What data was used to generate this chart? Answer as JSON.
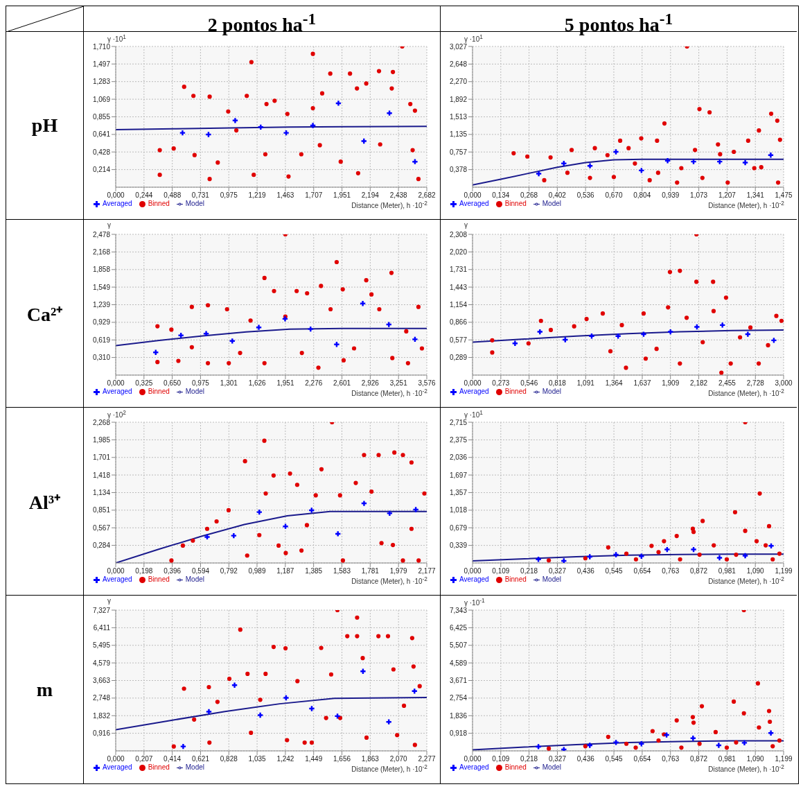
{
  "chart_data": [
    {
      "type": "scatter",
      "title": "2 pontos ha$^{-1}$",
      "annotations": [
        "pH"
      ],
      "ylabel": "γ ·10$^{1}$",
      "xlabel": "Distance (Meter), h ·10$^{-2}$",
      "grid": true,
      "legend": "bottom",
      "xlim": [
        0,
        2.682
      ],
      "xticks": [
        {
          "value": 0,
          "label": "0,000"
        },
        {
          "value": 0.244,
          "label": "0,244"
        },
        {
          "value": 0.488,
          "label": "0,488"
        },
        {
          "value": 0.731,
          "label": "0,731"
        },
        {
          "value": 0.975,
          "label": "0,975"
        },
        {
          "value": 1.219,
          "label": "1,219"
        },
        {
          "value": 1.463,
          "label": "1,463"
        },
        {
          "value": 1.707,
          "label": "1,707"
        },
        {
          "value": 1.951,
          "label": "1,951"
        },
        {
          "value": 2.194,
          "label": "2,194"
        },
        {
          "value": 2.438,
          "label": "2,438"
        },
        {
          "value": 2.682,
          "label": "2,682"
        }
      ],
      "ylim": [
        0,
        1.71
      ],
      "yticks": [
        {
          "value": 0.214,
          "label": "0,214"
        },
        {
          "value": 0.428,
          "label": "0,428"
        },
        {
          "value": 0.641,
          "label": "0,641"
        },
        {
          "value": 0.855,
          "label": "0,855"
        },
        {
          "value": 1.069,
          "label": "1,069"
        },
        {
          "value": 1.283,
          "label": "1,283"
        },
        {
          "value": 1.497,
          "label": "1,497"
        },
        {
          "value": 1.71,
          "label": "1,710"
        }
      ],
      "series": [
        {
          "name": "Model",
          "type": "line",
          "color": "#1a1a8c",
          "marker": "none",
          "x": [
            0,
            0.5,
            1,
            1.5,
            2,
            2.682
          ],
          "values": [
            0.7,
            0.71,
            0.72,
            0.73,
            0.735,
            0.74
          ]
        },
        {
          "name": "Binned",
          "color": "#e00000",
          "marker": "circle",
          "x": [
            0.38,
            0.38,
            0.5,
            0.59,
            0.67,
            0.68,
            0.81,
            0.81,
            0.88,
            0.97,
            1.04,
            1.13,
            1.17,
            1.19,
            1.3,
            1.29,
            1.37,
            1.48,
            1.49,
            1.6,
            1.7,
            1.7,
            1.76,
            1.78,
            1.85,
            1.94,
            2.02,
            2.08,
            2.09,
            2.16,
            2.27,
            2.28,
            2.38,
            2.39,
            2.47,
            2.54,
            2.56,
            2.61,
            2.58
          ],
          "values": [
            0.15,
            0.45,
            0.47,
            1.22,
            1.11,
            0.39,
            1.1,
            0.1,
            0.3,
            0.92,
            0.69,
            1.11,
            1.52,
            0.15,
            1.01,
            0.4,
            1.05,
            0.89,
            0.13,
            0.4,
            1.62,
            0.96,
            0.51,
            1.14,
            1.38,
            0.31,
            1.38,
            1.2,
            0.17,
            1.26,
            1.41,
            0.52,
            1.2,
            1.4,
            1.71,
            1.01,
            0.45,
            0.1,
            0.93
          ]
        },
        {
          "name": "Averaged",
          "color": "#0000ff",
          "marker": "cross",
          "x": [
            0.576,
            0.8,
            1.03,
            1.25,
            1.47,
            1.7,
            1.92,
            2.14,
            2.36,
            2.58
          ],
          "values": [
            0.66,
            0.64,
            0.81,
            0.73,
            0.66,
            0.75,
            1.02,
            0.56,
            0.9,
            0.31
          ]
        }
      ]
    },
    {
      "type": "scatter",
      "title": "5 pontos ha$^{-1}$",
      "ylabel": "γ ·10$^{1}$",
      "xlabel": "Distance (Meter), h ·10$^{-2}$",
      "grid": true,
      "legend": "bottom",
      "xlim": [
        0,
        1.475
      ],
      "xticks": [
        {
          "value": 0,
          "label": "0,000"
        },
        {
          "value": 0.134,
          "label": "0,134"
        },
        {
          "value": 0.268,
          "label": "0,268"
        },
        {
          "value": 0.402,
          "label": "0,402"
        },
        {
          "value": 0.536,
          "label": "0,536"
        },
        {
          "value": 0.67,
          "label": "0,670"
        },
        {
          "value": 0.804,
          "label": "0,804"
        },
        {
          "value": 0.939,
          "label": "0,939"
        },
        {
          "value": 1.073,
          "label": "1,073"
        },
        {
          "value": 1.207,
          "label": "1,207"
        },
        {
          "value": 1.341,
          "label": "1,341"
        },
        {
          "value": 1.475,
          "label": "1,475"
        }
      ],
      "ylim": [
        0,
        3.027
      ],
      "yticks": [
        {
          "value": 0.378,
          "label": "0,378"
        },
        {
          "value": 0.757,
          "label": "0,757"
        },
        {
          "value": 1.135,
          "label": "1,135"
        },
        {
          "value": 1.513,
          "label": "1,513"
        },
        {
          "value": 1.892,
          "label": "1,892"
        },
        {
          "value": 2.27,
          "label": "2,270"
        },
        {
          "value": 2.648,
          "label": "2,648"
        },
        {
          "value": 3.027,
          "label": "3,027"
        }
      ],
      "series": [
        {
          "name": "Model",
          "type": "line",
          "color": "#1a1a8c",
          "marker": "none",
          "x": [
            0,
            0.134,
            0.268,
            0.402,
            0.536,
            0.67,
            0.804,
            1.0,
            1.475
          ],
          "values": [
            0.05,
            0.17,
            0.3,
            0.43,
            0.53,
            0.59,
            0.6,
            0.6,
            0.6
          ]
        },
        {
          "name": "Binned",
          "color": "#e00000",
          "marker": "circle",
          "x": [
            0.195,
            0.26,
            0.37,
            0.47,
            0.58,
            0.64,
            0.7,
            0.74,
            0.8,
            0.875,
            0.91,
            1.017,
            1.076,
            1.124,
            0.67,
            0.84,
            0.97,
            1.09,
            1.21,
            1.307,
            1.358,
            1.416,
            1.445,
            1.458,
            1.449,
            1.336,
            1.239,
            1.174,
            1.055,
            0.99,
            0.88,
            0.77,
            0.557,
            0.45,
            0.34,
            1.164,
            1.369
          ],
          "values": [
            0.73,
            0.66,
            0.64,
            0.8,
            0.84,
            0.69,
            1.0,
            0.84,
            1.05,
            1.0,
            1.37,
            3.027,
            1.68,
            1.61,
            0.22,
            0.15,
            0.1,
            0.2,
            0.1,
            1.0,
            1.22,
            1.58,
            1.43,
            1.02,
            0.1,
            0.41,
            0.76,
            0.71,
            0.8,
            0.41,
            0.31,
            0.51,
            0.2,
            0.31,
            0.15,
            0.92,
            0.43
          ]
        },
        {
          "name": "Averaged",
          "color": "#0000ff",
          "marker": "cross",
          "x": [
            0.314,
            0.433,
            0.557,
            0.68,
            0.801,
            0.925,
            1.048,
            1.172,
            1.293,
            1.414
          ],
          "values": [
            0.29,
            0.51,
            0.46,
            0.76,
            0.36,
            0.57,
            0.55,
            0.55,
            0.53,
            0.69
          ]
        }
      ]
    },
    {
      "type": "scatter",
      "annotations": [
        "Ca²⁺"
      ],
      "ylabel": "γ",
      "xlabel": "Distance (Meter), h ·10$^{-2}$",
      "grid": true,
      "legend": "bottom",
      "xlim": [
        0,
        3.576
      ],
      "xticks": [
        {
          "value": 0,
          "label": "0,000"
        },
        {
          "value": 0.325,
          "label": "0,325"
        },
        {
          "value": 0.65,
          "label": "0,650"
        },
        {
          "value": 0.975,
          "label": "0,975"
        },
        {
          "value": 1.301,
          "label": "1,301"
        },
        {
          "value": 1.626,
          "label": "1,626"
        },
        {
          "value": 1.951,
          "label": "1,951"
        },
        {
          "value": 2.276,
          "label": "2,276"
        },
        {
          "value": 2.601,
          "label": "2,601"
        },
        {
          "value": 2.926,
          "label": "2,926"
        },
        {
          "value": 3.251,
          "label": "3,251"
        },
        {
          "value": 3.576,
          "label": "3,576"
        }
      ],
      "ylim": [
        0,
        2.478
      ],
      "yticks": [
        {
          "value": 0.31,
          "label": "0,310"
        },
        {
          "value": 0.619,
          "label": "0,619"
        },
        {
          "value": 0.929,
          "label": "0,929"
        },
        {
          "value": 1.239,
          "label": "1,239"
        },
        {
          "value": 1.549,
          "label": "1,549"
        },
        {
          "value": 1.858,
          "label": "1,858"
        },
        {
          "value": 2.168,
          "label": "2,168"
        },
        {
          "value": 2.478,
          "label": "2,478"
        }
      ],
      "series": [
        {
          "name": "Model",
          "type": "line",
          "color": "#1a1a8c",
          "marker": "none",
          "x": [
            0,
            0.5,
            1.0,
            1.5,
            2.0,
            2.6,
            3.576
          ],
          "values": [
            0.52,
            0.61,
            0.69,
            0.76,
            0.81,
            0.82,
            0.82
          ]
        },
        {
          "name": "Binned",
          "color": "#e00000",
          "marker": "circle",
          "x": [
            0.48,
            0.48,
            0.64,
            0.72,
            0.875,
            0.875,
            1.06,
            1.06,
            1.28,
            1.3,
            1.43,
            1.55,
            1.71,
            1.71,
            1.82,
            1.95,
            1.95,
            2.08,
            2.14,
            2.2,
            2.33,
            2.36,
            2.47,
            2.54,
            2.61,
            2.62,
            2.74,
            2.88,
            2.94,
            3.03,
            3.17,
            3.18,
            3.34,
            3.48,
            3.52,
            3.36
          ],
          "values": [
            0.86,
            0.23,
            0.8,
            0.25,
            1.2,
            0.49,
            1.23,
            0.21,
            1.16,
            0.21,
            0.39,
            0.96,
            1.71,
            0.21,
            1.48,
            2.478,
            1.03,
            1.48,
            0.39,
            1.44,
            0.13,
            1.57,
            1.16,
            1.99,
            1.51,
            0.26,
            0.47,
            1.67,
            1.42,
            1.16,
            1.8,
            0.3,
            0.77,
            1.2,
            0.47,
            0.21
          ]
        },
        {
          "name": "Averaged",
          "color": "#0000ff",
          "marker": "cross",
          "x": [
            0.46,
            0.75,
            1.04,
            1.34,
            1.645,
            1.947,
            2.24,
            2.54,
            2.84,
            3.14,
            3.44
          ],
          "values": [
            0.4,
            0.7,
            0.73,
            0.6,
            0.84,
            0.99,
            0.81,
            0.54,
            1.26,
            0.89,
            0.63
          ]
        }
      ]
    },
    {
      "type": "scatter",
      "ylabel": "γ",
      "xlabel": "Distance (Meter), h ·10$^{-2}$",
      "grid": true,
      "legend": "bottom",
      "xlim": [
        0,
        3.0
      ],
      "xticks": [
        {
          "value": 0,
          "label": "0,000"
        },
        {
          "value": 0.273,
          "label": "0,273"
        },
        {
          "value": 0.546,
          "label": "0,546"
        },
        {
          "value": 0.818,
          "label": "0,818"
        },
        {
          "value": 1.091,
          "label": "1,091"
        },
        {
          "value": 1.364,
          "label": "1,364"
        },
        {
          "value": 1.637,
          "label": "1,637"
        },
        {
          "value": 1.909,
          "label": "1,909"
        },
        {
          "value": 2.182,
          "label": "2,182"
        },
        {
          "value": 2.455,
          "label": "2,455"
        },
        {
          "value": 2.728,
          "label": "2,728"
        },
        {
          "value": 3.0,
          "label": "3,000"
        }
      ],
      "ylim": [
        0,
        2.308
      ],
      "yticks": [
        {
          "value": 0.289,
          "label": "0,289"
        },
        {
          "value": 0.577,
          "label": "0,577"
        },
        {
          "value": 0.866,
          "label": "0,866"
        },
        {
          "value": 1.154,
          "label": "1,154"
        },
        {
          "value": 1.443,
          "label": "1,443"
        },
        {
          "value": 1.731,
          "label": "1,731"
        },
        {
          "value": 2.02,
          "label": "2,020"
        },
        {
          "value": 2.308,
          "label": "2,308"
        }
      ],
      "series": [
        {
          "name": "Model",
          "type": "line",
          "color": "#1a1a8c",
          "marker": "none",
          "x": [
            0,
            0.5,
            1.0,
            1.5,
            2.0,
            2.5,
            3.0
          ],
          "values": [
            0.54,
            0.59,
            0.64,
            0.68,
            0.71,
            0.73,
            0.74
          ]
        },
        {
          "name": "Binned",
          "color": "#e00000",
          "marker": "circle",
          "x": [
            0.19,
            0.19,
            0.54,
            0.66,
            0.755,
            0.98,
            1.1,
            1.256,
            1.33,
            1.44,
            1.65,
            1.67,
            1.775,
            1.886,
            1.904,
            2.0,
            2.0,
            2.065,
            2.159,
            2.159,
            2.22,
            2.32,
            2.325,
            2.445,
            2.49,
            2.58,
            2.68,
            2.76,
            2.93,
            2.98,
            2.85,
            2.4,
            1.48
          ],
          "values": [
            0.37,
            0.57,
            0.52,
            0.89,
            0.74,
            0.8,
            0.92,
            1.01,
            0.39,
            0.82,
            1.01,
            0.27,
            0.43,
            1.11,
            1.69,
            1.71,
            0.19,
            0.94,
            2.308,
            1.53,
            0.54,
            1.53,
            1.05,
            1.27,
            0.19,
            0.62,
            0.78,
            0.19,
            0.97,
            0.89,
            0.49,
            0.04,
            0.12
          ]
        },
        {
          "name": "Averaged",
          "color": "#0000ff",
          "marker": "cross",
          "x": [
            0.41,
            0.65,
            0.894,
            1.149,
            1.404,
            1.65,
            1.909,
            2.164,
            2.41,
            2.655,
            2.906
          ],
          "values": [
            0.52,
            0.71,
            0.58,
            0.64,
            0.64,
            0.67,
            0.71,
            0.79,
            0.82,
            0.67,
            0.57
          ]
        }
      ]
    },
    {
      "type": "scatter",
      "annotations": [
        "Al³⁺"
      ],
      "ylabel": "γ ·10$^{2}$",
      "xlabel": "Distance (Meter), h ·10$^{-2}$",
      "grid": true,
      "legend": "bottom",
      "xlim": [
        0,
        2.177
      ],
      "xticks": [
        {
          "value": 0,
          "label": "0,000"
        },
        {
          "value": 0.198,
          "label": "0,198"
        },
        {
          "value": 0.396,
          "label": "0,396"
        },
        {
          "value": 0.594,
          "label": "0,594"
        },
        {
          "value": 0.792,
          "label": "0,792"
        },
        {
          "value": 0.989,
          "label": "0,989"
        },
        {
          "value": 1.187,
          "label": "1,187"
        },
        {
          "value": 1.385,
          "label": "1,385"
        },
        {
          "value": 1.583,
          "label": "1,583"
        },
        {
          "value": 1.781,
          "label": "1,781"
        },
        {
          "value": 1.979,
          "label": "1,979"
        },
        {
          "value": 2.177,
          "label": "2,177"
        }
      ],
      "ylim": [
        0,
        2.268
      ],
      "yticks": [
        {
          "value": 0.284,
          "label": "0,284"
        },
        {
          "value": 0.567,
          "label": "0,567"
        },
        {
          "value": 0.851,
          "label": "0,851"
        },
        {
          "value": 1.134,
          "label": "1,134"
        },
        {
          "value": 1.418,
          "label": "1,418"
        },
        {
          "value": 1.701,
          "label": "1,701"
        },
        {
          "value": 1.985,
          "label": "1,985"
        },
        {
          "value": 2.268,
          "label": "2,268"
        }
      ],
      "series": [
        {
          "name": "Model",
          "type": "line",
          "color": "#1a1a8c",
          "marker": "none",
          "x": [
            0,
            0.3,
            0.6,
            0.9,
            1.2,
            1.5,
            2.177
          ],
          "values": [
            0,
            0.22,
            0.43,
            0.62,
            0.76,
            0.83,
            0.83
          ]
        },
        {
          "name": "Binned",
          "color": "#e00000",
          "marker": "circle",
          "x": [
            0.39,
            0.47,
            0.54,
            0.64,
            0.706,
            0.79,
            0.905,
            0.92,
            1.005,
            1.04,
            1.05,
            1.105,
            1.14,
            1.19,
            1.22,
            1.27,
            1.3,
            1.338,
            1.4,
            1.44,
            1.514,
            1.57,
            1.59,
            1.68,
            1.738,
            1.79,
            1.84,
            1.86,
            1.94,
            1.95,
            2.01,
            2.07,
            2.07,
            2.12,
            2.16,
            2.01
          ],
          "values": [
            0.04,
            0.28,
            0.36,
            0.55,
            0.67,
            0.85,
            1.64,
            0.12,
            0.45,
            1.97,
            1.12,
            1.41,
            0.28,
            0.16,
            1.44,
            1.26,
            0.2,
            0.61,
            1.09,
            1.51,
            2.268,
            1.09,
            0.04,
            1.29,
            1.74,
            1.15,
            1.74,
            0.32,
            0.29,
            1.78,
            1.74,
            1.62,
            0.55,
            0.04,
            1.12,
            0.04
          ]
        },
        {
          "name": "Averaged",
          "color": "#0000ff",
          "marker": "cross",
          "x": [
            0.64,
            0.826,
            1.005,
            1.188,
            1.371,
            1.555,
            1.738,
            1.917,
            2.1
          ],
          "values": [
            0.42,
            0.44,
            0.82,
            0.59,
            0.85,
            0.47,
            0.96,
            0.8,
            0.86
          ]
        }
      ]
    },
    {
      "type": "scatter",
      "ylabel": "γ ·10$^{1}$",
      "xlabel": "Distance (Meter), h ·10$^{-2}$",
      "grid": true,
      "legend": "bottom",
      "xlim": [
        0,
        1.199
      ],
      "xticks": [
        {
          "value": 0,
          "label": "0,000"
        },
        {
          "value": 0.109,
          "label": "0,109"
        },
        {
          "value": 0.218,
          "label": "0,218"
        },
        {
          "value": 0.327,
          "label": "0,327"
        },
        {
          "value": 0.436,
          "label": "0,436"
        },
        {
          "value": 0.545,
          "label": "0,545"
        },
        {
          "value": 0.654,
          "label": "0,654"
        },
        {
          "value": 0.763,
          "label": "0,763"
        },
        {
          "value": 0.872,
          "label": "0,872"
        },
        {
          "value": 0.981,
          "label": "0,981"
        },
        {
          "value": 1.09,
          "label": "1,090"
        },
        {
          "value": 1.199,
          "label": "1,199"
        }
      ],
      "ylim": [
        0,
        2.715
      ],
      "yticks": [
        {
          "value": 0.339,
          "label": "0,339"
        },
        {
          "value": 0.679,
          "label": "0,679"
        },
        {
          "value": 1.018,
          "label": "1,018"
        },
        {
          "value": 1.357,
          "label": "1,357"
        },
        {
          "value": 1.697,
          "label": "1,697"
        },
        {
          "value": 2.036,
          "label": "2,036"
        },
        {
          "value": 2.375,
          "label": "2,375"
        },
        {
          "value": 2.715,
          "label": "2,715"
        }
      ],
      "series": [
        {
          "name": "Model",
          "type": "line",
          "color": "#1a1a8c",
          "marker": "none",
          "x": [
            0,
            0.2,
            0.4,
            0.6,
            0.8,
            1.0,
            1.199
          ],
          "values": [
            0.04,
            0.08,
            0.12,
            0.15,
            0.165,
            0.17,
            0.17
          ]
        },
        {
          "name": "Binned",
          "color": "#e00000",
          "marker": "circle",
          "x": [
            0.294,
            0.435,
            0.523,
            0.593,
            0.69,
            0.738,
            0.787,
            0.849,
            0.852,
            0.887,
            0.875,
            0.93,
            1.012,
            1.051,
            1.051,
            1.095,
            1.107,
            1.13,
            1.143,
            1.157,
            1.183,
            0.98,
            0.8,
            0.63,
            1.016,
            0.717
          ],
          "values": [
            0.05,
            0.09,
            0.3,
            0.18,
            0.33,
            0.42,
            0.52,
            0.66,
            0.6,
            0.81,
            0.16,
            0.34,
            0.98,
            2.715,
            0.62,
            0.42,
            1.34,
            0.34,
            0.71,
            0.07,
            0.18,
            0.07,
            0.07,
            0.07,
            0.16,
            0.21
          ]
        },
        {
          "name": "Averaged",
          "color": "#0000ff",
          "marker": "cross",
          "x": [
            0.254,
            0.352,
            0.452,
            0.553,
            0.651,
            0.75,
            0.852,
            0.952,
            1.051,
            1.151
          ],
          "values": [
            0.07,
            0.04,
            0.12,
            0.16,
            0.13,
            0.26,
            0.26,
            0.1,
            0.14,
            0.33
          ]
        }
      ]
    },
    {
      "type": "scatter",
      "annotations": [
        "m"
      ],
      "ylabel": "γ",
      "xlabel": "Distance (Meter), h ·10$^{-2}$",
      "grid": true,
      "legend": "bottom",
      "xlim": [
        0,
        2.277
      ],
      "xticks": [
        {
          "value": 0,
          "label": "0,000"
        },
        {
          "value": 0.207,
          "label": "0,207"
        },
        {
          "value": 0.414,
          "label": "0,414"
        },
        {
          "value": 0.621,
          "label": "0,621"
        },
        {
          "value": 0.828,
          "label": "0,828"
        },
        {
          "value": 1.035,
          "label": "1,035"
        },
        {
          "value": 1.242,
          "label": "1,242"
        },
        {
          "value": 1.449,
          "label": "1,449"
        },
        {
          "value": 1.656,
          "label": "1,656"
        },
        {
          "value": 1.863,
          "label": "1,863"
        },
        {
          "value": 2.07,
          "label": "2,070"
        },
        {
          "value": 2.277,
          "label": "2,277"
        }
      ],
      "ylim": [
        0,
        7.327
      ],
      "yticks": [
        {
          "value": 0.916,
          "label": "0,916"
        },
        {
          "value": 1.832,
          "label": "1,832"
        },
        {
          "value": 2.748,
          "label": "2,748"
        },
        {
          "value": 3.663,
          "label": "3,663"
        },
        {
          "value": 4.579,
          "label": "4,579"
        },
        {
          "value": 5.495,
          "label": "5,495"
        },
        {
          "value": 6.411,
          "label": "6,411"
        },
        {
          "value": 7.327,
          "label": "7,327"
        }
      ],
      "series": [
        {
          "name": "Model",
          "type": "line",
          "color": "#1a1a8c",
          "marker": "none",
          "x": [
            0,
            0.4,
            0.8,
            1.2,
            1.6,
            2.277
          ],
          "values": [
            1.1,
            1.58,
            2.05,
            2.45,
            2.73,
            2.78
          ]
        },
        {
          "name": "Binned",
          "color": "#e00000",
          "marker": "circle",
          "x": [
            0.425,
            0.5,
            0.574,
            0.682,
            0.686,
            0.745,
            0.832,
            0.912,
            0.965,
            0.99,
            1.058,
            1.097,
            1.156,
            1.243,
            1.254,
            1.33,
            1.383,
            1.435,
            1.504,
            1.54,
            1.577,
            1.623,
            1.643,
            1.695,
            1.767,
            1.767,
            1.808,
            1.836,
            1.923,
            1.993,
            2.033,
            2.06,
            2.17,
            2.18,
            2.225,
            2.19,
            2.11
          ],
          "values": [
            0.23,
            3.24,
            1.63,
            3.32,
            0.43,
            2.55,
            3.75,
            6.31,
            4.01,
            0.94,
            2.66,
            4.01,
            5.41,
            5.34,
            0.56,
            3.63,
            0.43,
            0.43,
            5.36,
            1.71,
            3.98,
            7.327,
            1.71,
            5.97,
            6.94,
            5.97,
            4.83,
            0.69,
            5.97,
            5.97,
            4.24,
            0.82,
            5.87,
            4.39,
            3.37,
            0.31,
            2.35
          ]
        },
        {
          "name": "Averaged",
          "color": "#0000ff",
          "marker": "cross",
          "x": [
            0.494,
            0.682,
            0.87,
            1.058,
            1.247,
            1.435,
            1.623,
            1.81,
            1.999,
            2.187
          ],
          "values": [
            0.23,
            2.04,
            3.42,
            1.86,
            2.76,
            2.2,
            1.81,
            4.14,
            1.51,
            3.11
          ]
        }
      ]
    },
    {
      "type": "scatter",
      "ylabel": "γ ·10$^{-1}$",
      "xlabel": "Distance (Meter), h ·10$^{-2}$",
      "grid": true,
      "legend": "bottom",
      "xlim": [
        0,
        1.199
      ],
      "xticks": [
        {
          "value": 0,
          "label": "0,000"
        },
        {
          "value": 0.109,
          "label": "0,109"
        },
        {
          "value": 0.218,
          "label": "0,218"
        },
        {
          "value": 0.327,
          "label": "0,327"
        },
        {
          "value": 0.436,
          "label": "0,436"
        },
        {
          "value": 0.545,
          "label": "0,545"
        },
        {
          "value": 0.654,
          "label": "0,654"
        },
        {
          "value": 0.763,
          "label": "0,763"
        },
        {
          "value": 0.872,
          "label": "0,872"
        },
        {
          "value": 0.981,
          "label": "0,981"
        },
        {
          "value": 1.09,
          "label": "1,090"
        },
        {
          "value": 1.199,
          "label": "1,199"
        }
      ],
      "ylim": [
        0,
        7.343
      ],
      "yticks": [
        {
          "value": 0.918,
          "label": "0,918"
        },
        {
          "value": 1.836,
          "label": "1,836"
        },
        {
          "value": 2.754,
          "label": "2,754"
        },
        {
          "value": 3.671,
          "label": "3,671"
        },
        {
          "value": 4.589,
          "label": "4,589"
        },
        {
          "value": 5.507,
          "label": "5,507"
        },
        {
          "value": 6.425,
          "label": "6,425"
        },
        {
          "value": 7.343,
          "label": "7,343"
        }
      ],
      "series": [
        {
          "name": "Model",
          "type": "line",
          "color": "#1a1a8c",
          "marker": "none",
          "x": [
            0,
            0.2,
            0.4,
            0.6,
            0.8,
            1.0,
            1.199
          ],
          "values": [
            0.05,
            0.2,
            0.33,
            0.43,
            0.49,
            0.52,
            0.52
          ]
        },
        {
          "name": "Binned",
          "color": "#e00000",
          "marker": "circle",
          "x": [
            0.294,
            0.435,
            0.523,
            0.593,
            0.694,
            0.738,
            0.787,
            0.849,
            0.852,
            0.884,
            0.875,
            0.937,
            1.007,
            1.046,
            1.046,
            1.1,
            1.104,
            1.143,
            1.146,
            1.157,
            1.183,
            0.98,
            0.805,
            0.629,
            1.016,
            0.717
          ],
          "values": [
            0.12,
            0.24,
            0.73,
            0.37,
            1.03,
            0.86,
            1.59,
            1.76,
            1.47,
            2.33,
            0.37,
            0.98,
            2.57,
            7.343,
            1.96,
            3.52,
            1.22,
            2.08,
            1.52,
            0.24,
            0.54,
            0.17,
            0.17,
            0.17,
            0.44,
            0.54
          ]
        },
        {
          "name": "Averaged",
          "color": "#0000ff",
          "marker": "cross",
          "x": [
            0.254,
            0.352,
            0.452,
            0.553,
            0.651,
            0.748,
            0.85,
            0.949,
            1.048,
            1.15
          ],
          "values": [
            0.22,
            0.07,
            0.29,
            0.44,
            0.37,
            0.83,
            0.66,
            0.29,
            0.42,
            0.93
          ]
        }
      ]
    }
  ]
}
